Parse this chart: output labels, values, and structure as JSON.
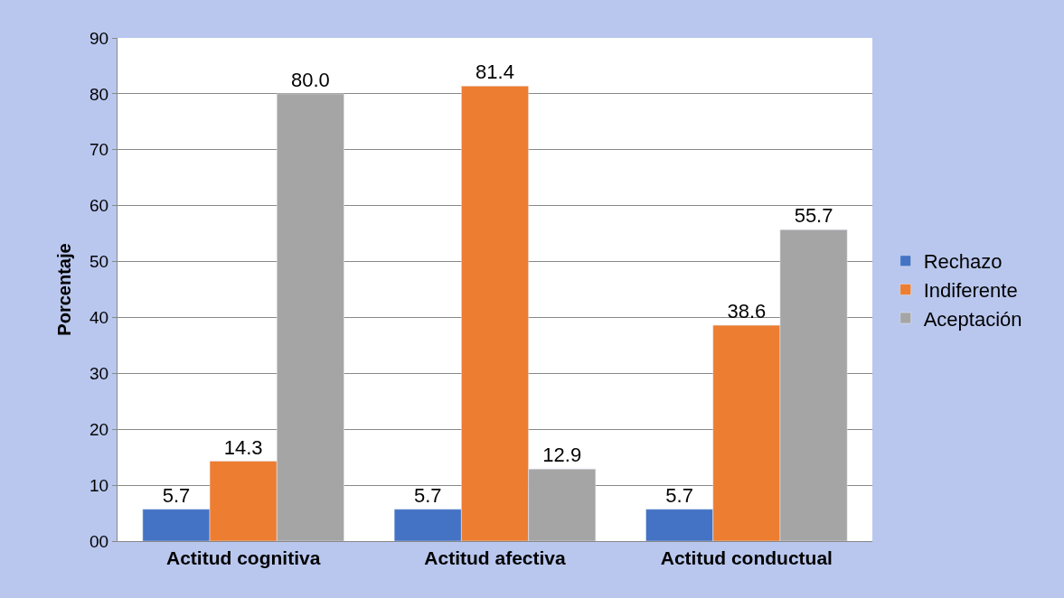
{
  "chart_data": {
    "type": "bar",
    "ylabel": "Porcentaje",
    "categories": [
      "Actitud cognitiva",
      "Actitud afectiva",
      "Actitud conductual"
    ],
    "series": [
      {
        "name": "Rechazo",
        "color": "#4472c4",
        "values": [
          5.7,
          5.7,
          5.7
        ]
      },
      {
        "name": "Indiferente",
        "color": "#ed7d31",
        "values": [
          14.3,
          81.4,
          38.6
        ]
      },
      {
        "name": "Aceptación",
        "color": "#a5a5a5",
        "values": [
          80.0,
          12.9,
          55.7
        ]
      }
    ],
    "value_labels": [
      [
        "5.7",
        "5.7",
        "5.7"
      ],
      [
        "14.3",
        "81.4",
        "38.6"
      ],
      [
        "80.0",
        "12.9",
        "55.7"
      ]
    ],
    "ylim": [
      0,
      90
    ],
    "yticks": [
      {
        "value": 0,
        "label": "00"
      },
      10,
      20,
      30,
      40,
      50,
      60,
      70,
      80,
      90
    ],
    "grid": "y",
    "legend": "right"
  }
}
